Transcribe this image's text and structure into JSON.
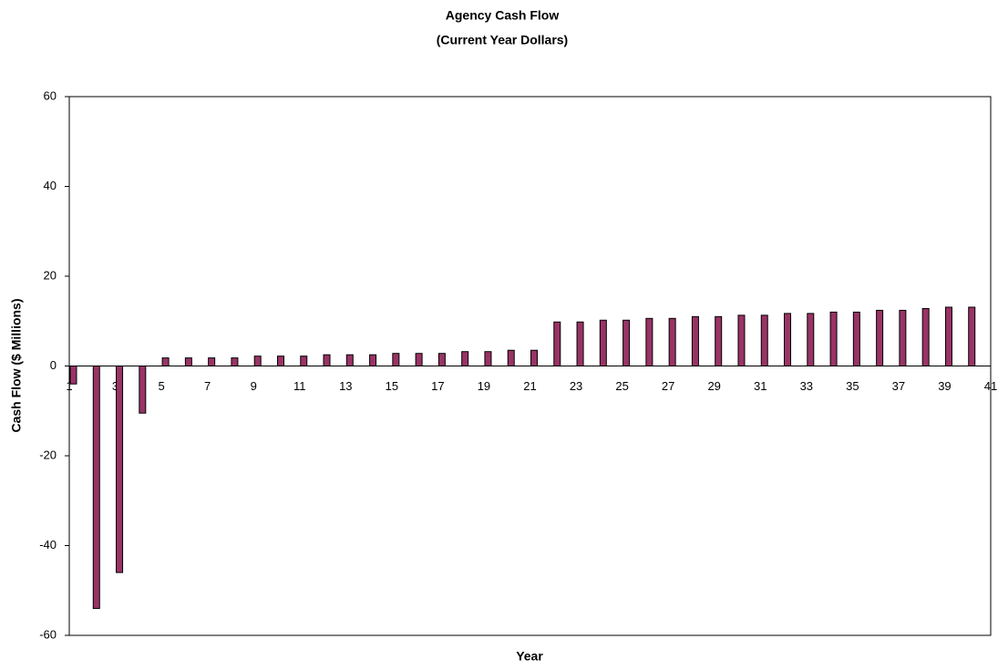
{
  "chart_data": {
    "type": "bar",
    "title": "Agency Cash Flow",
    "subtitle": "(Current Year Dollars)",
    "x_label": "Year",
    "y_label": "Cash Flow ($ Millions)",
    "categories": [
      "1",
      null,
      "3",
      null,
      "5",
      null,
      "7",
      null,
      "9",
      null,
      "11",
      null,
      "13",
      null,
      "15",
      null,
      "17",
      null,
      "19",
      null,
      "21",
      null,
      "23",
      null,
      "25",
      null,
      "27",
      null,
      "29",
      null,
      "31",
      null,
      "33",
      null,
      "35",
      null,
      "37",
      null,
      "39",
      null,
      "41"
    ],
    "values": [
      -4,
      -54,
      -46,
      -10.5,
      1.8,
      1.8,
      1.8,
      1.8,
      2.2,
      2.2,
      2.2,
      2.5,
      2.5,
      2.5,
      2.8,
      2.8,
      2.8,
      3.2,
      3.2,
      3.5,
      3.5,
      9.8,
      9.8,
      10.2,
      10.2,
      10.6,
      10.6,
      11,
      11,
      11.3,
      11.3,
      11.7,
      11.7,
      12,
      12,
      12.4,
      12.4,
      12.8,
      13.1,
      13.1,
      null
    ],
    "color": "#993366",
    "ylim": [
      -60,
      60
    ],
    "yticks": [
      -60,
      -40,
      -20,
      0,
      20,
      40,
      60
    ],
    "grid": false
  }
}
